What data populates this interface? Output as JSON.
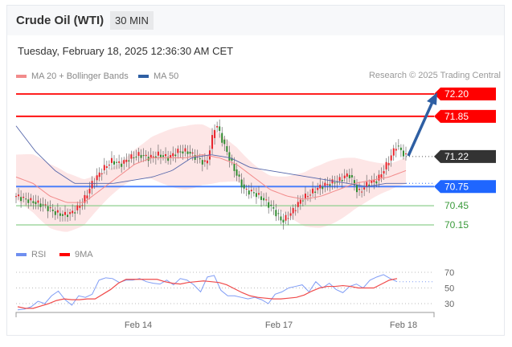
{
  "header": {
    "title": "Crude Oil (WTI)",
    "timeframe": "30 MIN"
  },
  "timestamp": "Tuesday, February 18, 2025 12:36:30 AM CET",
  "legend": {
    "ma20": "MA 20 + Bollinger Bands",
    "ma50": "MA 50",
    "rsi": "RSI",
    "ma9": "9MA"
  },
  "credit": "Research © 2025 Trading Central",
  "colors": {
    "up": "#e8242c",
    "down": "#2e8b2e",
    "resistance": "#ff0000",
    "support": "#8fcf8f",
    "pivot": "#1f66ff",
    "current": "#333333",
    "arrow": "#2e5fa3",
    "ma20": "#f28b8b",
    "ma50": "#5566aa",
    "band": "#fde0e0",
    "rsi": "#7f9cf5",
    "ma9": "#f04b4b"
  },
  "chart_data": [
    {
      "type": "candlestick",
      "price_levels": [
        {
          "label": "72.20",
          "value": 72.2,
          "kind": "resistance"
        },
        {
          "label": "71.85",
          "value": 71.85,
          "kind": "resistance"
        },
        {
          "label": "71.22",
          "value": 71.22,
          "kind": "current"
        },
        {
          "label": "70.75",
          "value": 70.75,
          "kind": "pivot"
        },
        {
          "label": "70.45",
          "value": 70.45,
          "kind": "support"
        },
        {
          "label": "70.15",
          "value": 70.15,
          "kind": "support"
        }
      ],
      "close_path": [
        70.6,
        70.55,
        70.5,
        70.45,
        70.35,
        70.3,
        70.35,
        70.5,
        70.8,
        71.0,
        71.15,
        71.1,
        71.2,
        71.25,
        71.2,
        71.25,
        71.2,
        71.3,
        71.3,
        71.2,
        71.1,
        71.75,
        71.35,
        71.0,
        70.7,
        70.65,
        70.55,
        70.4,
        70.2,
        70.35,
        70.55,
        70.65,
        70.75,
        70.8,
        70.85,
        70.95,
        70.65,
        70.8,
        70.85,
        71.1,
        71.4,
        71.22
      ],
      "ma20_path": [
        70.9,
        70.8,
        70.6,
        70.5,
        70.5,
        70.7,
        70.9,
        71.1,
        71.2,
        71.2,
        71.2,
        71.25,
        71.2,
        71.1,
        70.9,
        70.7,
        70.6,
        70.55,
        70.6,
        70.7,
        70.8,
        70.85,
        70.9,
        71.0
      ],
      "ma50_path": [
        71.7,
        71.3,
        71.0,
        70.8,
        70.8,
        70.8,
        70.85,
        70.9,
        71.0,
        71.2,
        71.25,
        71.2,
        71.05,
        71.0,
        70.95,
        70.9,
        70.85,
        70.8,
        70.75,
        70.8,
        70.8
      ],
      "x_ticks": [
        "Feb 14",
        "Feb 17",
        "Feb 18"
      ]
    },
    {
      "type": "line",
      "series": [
        {
          "name": "RSI",
          "values": [
            22,
            23,
            26,
            33,
            30,
            40,
            46,
            35,
            28,
            40,
            38,
            42,
            60,
            63,
            62,
            57,
            60,
            60,
            62,
            58,
            56,
            55,
            60,
            54,
            62,
            60,
            54,
            45,
            64,
            66,
            47,
            40,
            40,
            38,
            36,
            38,
            35,
            30,
            42,
            45,
            50,
            52,
            54,
            45,
            58,
            50,
            56,
            48,
            44,
            52,
            55,
            50,
            60,
            64,
            67,
            62,
            58
          ]
        },
        {
          "name": "9MA",
          "values": [
            26,
            24,
            24,
            27,
            30,
            34,
            36,
            35,
            35,
            36,
            36,
            42,
            48,
            56,
            61,
            61,
            61,
            61,
            61,
            58,
            56,
            55,
            57,
            58,
            59,
            58,
            57,
            54,
            49,
            44,
            40,
            38,
            37,
            36,
            36,
            37,
            38,
            41,
            46,
            50,
            52,
            52,
            53,
            52,
            50,
            50,
            50,
            55,
            60,
            62
          ]
        }
      ],
      "y_ticks": [
        70,
        50,
        30
      ],
      "x_ticks": [
        "Feb 14",
        "Feb 17",
        "Feb 18"
      ]
    }
  ]
}
